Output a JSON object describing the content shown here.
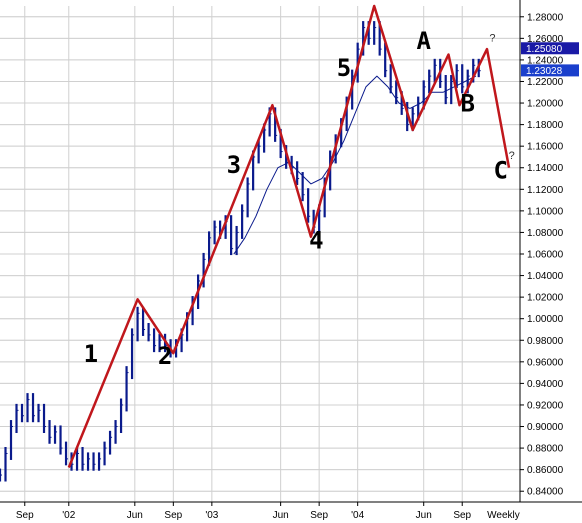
{
  "chart_data": {
    "type": "line",
    "title": "",
    "xlabel": "",
    "ylabel": "",
    "timeframe_label": "Weekly",
    "ylim": [
      0.83,
      1.29
    ],
    "y_ticks": [
      "0.84000",
      "0.86000",
      "0.88000",
      "0.90000",
      "0.92000",
      "0.94000",
      "0.96000",
      "0.98000",
      "1.00000",
      "1.02000",
      "1.04000",
      "1.06000",
      "1.08000",
      "1.10000",
      "1.12000",
      "1.14000",
      "1.16000",
      "1.18000",
      "1.20000",
      "1.22000",
      "1.24000",
      "1.26000",
      "1.28000"
    ],
    "x_ticks": [
      {
        "label": "Sep",
        "t": 2
      },
      {
        "label": "'02",
        "t": 18
      },
      {
        "label": "Jun",
        "t": 42
      },
      {
        "label": "Sep",
        "t": 56
      },
      {
        "label": "'03",
        "t": 70
      },
      {
        "label": "Jun",
        "t": 95
      },
      {
        "label": "Sep",
        "t": 109
      },
      {
        "label": "'04",
        "t": 123
      },
      {
        "label": "Jun",
        "t": 147
      },
      {
        "label": "Sep",
        "t": 161
      },
      {
        "label": "Weekly",
        "t": 176
      }
    ],
    "t_range": [
      -7,
      182
    ],
    "series": [
      {
        "kind": "price",
        "color": "#0a1a8c",
        "points": [
          {
            "t": -7,
            "v": 0.855
          },
          {
            "t": -5,
            "v": 0.875
          },
          {
            "t": -3,
            "v": 0.9
          },
          {
            "t": -1,
            "v": 0.915
          },
          {
            "t": 1,
            "v": 0.91
          },
          {
            "t": 3,
            "v": 0.925
          },
          {
            "t": 5,
            "v": 0.91
          },
          {
            "t": 7,
            "v": 0.915
          },
          {
            "t": 9,
            "v": 0.9
          },
          {
            "t": 11,
            "v": 0.89
          },
          {
            "t": 13,
            "v": 0.895
          },
          {
            "t": 15,
            "v": 0.88
          },
          {
            "t": 17,
            "v": 0.87
          },
          {
            "t": 19,
            "v": 0.865
          },
          {
            "t": 21,
            "v": 0.875
          },
          {
            "t": 23,
            "v": 0.865
          },
          {
            "t": 25,
            "v": 0.87
          },
          {
            "t": 27,
            "v": 0.865
          },
          {
            "t": 29,
            "v": 0.87
          },
          {
            "t": 31,
            "v": 0.88
          },
          {
            "t": 33,
            "v": 0.89
          },
          {
            "t": 35,
            "v": 0.9
          },
          {
            "t": 37,
            "v": 0.92
          },
          {
            "t": 39,
            "v": 0.95
          },
          {
            "t": 41,
            "v": 0.985
          },
          {
            "t": 43,
            "v": 1.005
          },
          {
            "t": 45,
            "v": 0.99
          },
          {
            "t": 47,
            "v": 0.985
          },
          {
            "t": 49,
            "v": 0.975
          },
          {
            "t": 51,
            "v": 0.98
          },
          {
            "t": 53,
            "v": 0.975
          },
          {
            "t": 55,
            "v": 0.97
          },
          {
            "t": 57,
            "v": 0.975
          },
          {
            "t": 59,
            "v": 0.985
          },
          {
            "t": 61,
            "v": 1.0
          },
          {
            "t": 63,
            "v": 1.015
          },
          {
            "t": 65,
            "v": 1.035
          },
          {
            "t": 67,
            "v": 1.055
          },
          {
            "t": 69,
            "v": 1.075
          },
          {
            "t": 71,
            "v": 1.085
          },
          {
            "t": 73,
            "v": 1.08
          },
          {
            "t": 75,
            "v": 1.09
          },
          {
            "t": 77,
            "v": 1.065
          },
          {
            "t": 79,
            "v": 1.08
          },
          {
            "t": 81,
            "v": 1.1
          },
          {
            "t": 83,
            "v": 1.125
          },
          {
            "t": 85,
            "v": 1.15
          },
          {
            "t": 87,
            "v": 1.16
          },
          {
            "t": 89,
            "v": 1.175
          },
          {
            "t": 91,
            "v": 1.19
          },
          {
            "t": 93,
            "v": 1.17
          },
          {
            "t": 95,
            "v": 1.155
          },
          {
            "t": 97,
            "v": 1.145
          },
          {
            "t": 99,
            "v": 1.14
          },
          {
            "t": 101,
            "v": 1.13
          },
          {
            "t": 103,
            "v": 1.115
          },
          {
            "t": 105,
            "v": 1.095
          },
          {
            "t": 107,
            "v": 1.085
          },
          {
            "t": 109,
            "v": 1.1
          },
          {
            "t": 111,
            "v": 1.125
          },
          {
            "t": 113,
            "v": 1.15
          },
          {
            "t": 115,
            "v": 1.165
          },
          {
            "t": 117,
            "v": 1.18
          },
          {
            "t": 119,
            "v": 1.2
          },
          {
            "t": 121,
            "v": 1.225
          },
          {
            "t": 123,
            "v": 1.25
          },
          {
            "t": 125,
            "v": 1.27
          },
          {
            "t": 127,
            "v": 1.26
          },
          {
            "t": 129,
            "v": 1.27
          },
          {
            "t": 131,
            "v": 1.25
          },
          {
            "t": 133,
            "v": 1.23
          },
          {
            "t": 135,
            "v": 1.215
          },
          {
            "t": 137,
            "v": 1.205
          },
          {
            "t": 139,
            "v": 1.195
          },
          {
            "t": 141,
            "v": 1.18
          },
          {
            "t": 143,
            "v": 1.19
          },
          {
            "t": 145,
            "v": 1.2
          },
          {
            "t": 147,
            "v": 1.215
          },
          {
            "t": 149,
            "v": 1.225
          },
          {
            "t": 151,
            "v": 1.235
          },
          {
            "t": 153,
            "v": 1.22
          },
          {
            "t": 155,
            "v": 1.205
          },
          {
            "t": 157,
            "v": 1.22
          },
          {
            "t": 159,
            "v": 1.23
          },
          {
            "t": 161,
            "v": 1.215
          },
          {
            "t": 163,
            "v": 1.225
          },
          {
            "t": 165,
            "v": 1.235
          },
          {
            "t": 167,
            "v": 1.23
          }
        ]
      },
      {
        "kind": "moving-average",
        "color": "#0a1a8c",
        "points": [
          {
            "t": 78,
            "v": 1.06
          },
          {
            "t": 82,
            "v": 1.075
          },
          {
            "t": 86,
            "v": 1.095
          },
          {
            "t": 90,
            "v": 1.12
          },
          {
            "t": 94,
            "v": 1.14
          },
          {
            "t": 98,
            "v": 1.145
          },
          {
            "t": 102,
            "v": 1.135
          },
          {
            "t": 106,
            "v": 1.125
          },
          {
            "t": 110,
            "v": 1.13
          },
          {
            "t": 114,
            "v": 1.145
          },
          {
            "t": 118,
            "v": 1.165
          },
          {
            "t": 122,
            "v": 1.19
          },
          {
            "t": 126,
            "v": 1.215
          },
          {
            "t": 130,
            "v": 1.225
          },
          {
            "t": 134,
            "v": 1.215
          },
          {
            "t": 138,
            "v": 1.2
          },
          {
            "t": 142,
            "v": 1.195
          },
          {
            "t": 146,
            "v": 1.2
          },
          {
            "t": 150,
            "v": 1.21
          },
          {
            "t": 154,
            "v": 1.21
          },
          {
            "t": 158,
            "v": 1.215
          },
          {
            "t": 162,
            "v": 1.22
          },
          {
            "t": 166,
            "v": 1.225
          }
        ]
      },
      {
        "kind": "elliott-wave",
        "color": "#c0171c",
        "points": [
          {
            "t": 18,
            "v": 0.862
          },
          {
            "t": 43,
            "v": 1.018
          },
          {
            "t": 56,
            "v": 0.968
          },
          {
            "t": 92,
            "v": 1.198
          },
          {
            "t": 106,
            "v": 1.076
          },
          {
            "t": 129,
            "v": 1.29
          },
          {
            "t": 143,
            "v": 1.175
          },
          {
            "t": 156,
            "v": 1.245
          },
          {
            "t": 160,
            "v": 1.198
          },
          {
            "t": 170,
            "v": 1.25
          },
          {
            "t": 178,
            "v": 1.14
          }
        ]
      }
    ],
    "annotations": [
      {
        "text": "1",
        "t": 26,
        "v": 0.96
      },
      {
        "text": "2",
        "t": 53,
        "v": 0.958
      },
      {
        "text": "3",
        "t": 78,
        "v": 1.135
      },
      {
        "text": "4",
        "t": 108,
        "v": 1.065
      },
      {
        "text": "5",
        "t": 118,
        "v": 1.225
      },
      {
        "text": "A",
        "t": 147,
        "v": 1.25
      },
      {
        "text": "B",
        "t": 163,
        "v": 1.192
      },
      {
        "text": "C",
        "t": 175,
        "v": 1.13
      }
    ],
    "question_marks": [
      {
        "text": "?",
        "t": 172,
        "v": 1.257
      },
      {
        "text": "?",
        "t": 179,
        "v": 1.148
      }
    ],
    "price_labels": [
      {
        "text": "1.25080",
        "v": 1.2508,
        "color": "#1a1aa6"
      },
      {
        "text": "1.23028",
        "v": 1.23028,
        "color": "#1a3fcc"
      }
    ]
  }
}
